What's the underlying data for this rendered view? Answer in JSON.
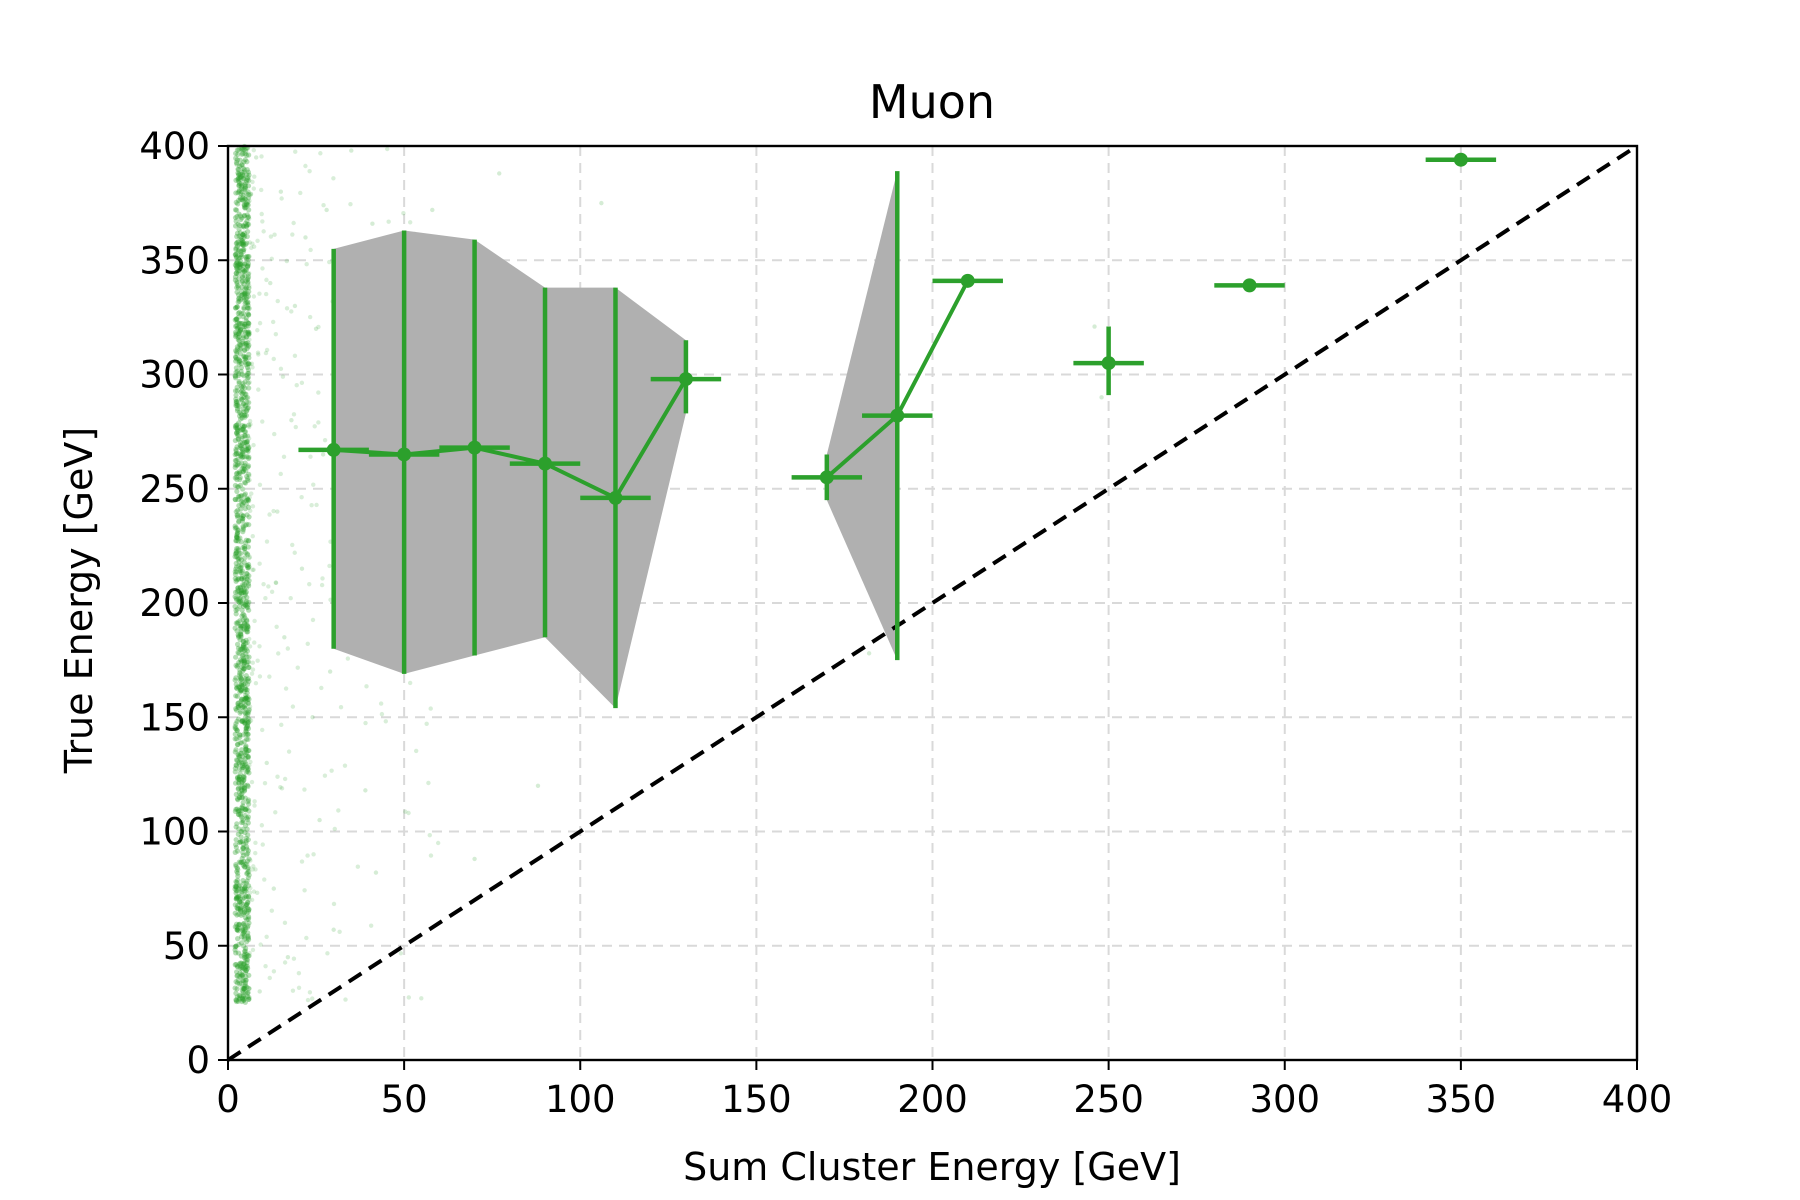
{
  "chart_data": {
    "type": "scatter",
    "title": "Muon",
    "xlabel": "Sum Cluster Energy [GeV]",
    "ylabel": "True Energy [GeV]",
    "xlim": [
      0,
      400
    ],
    "ylim": [
      0,
      400
    ],
    "xticks": [
      "0",
      "50",
      "100",
      "150",
      "200",
      "250",
      "300",
      "350",
      "400"
    ],
    "yticks": [
      "0",
      "50",
      "100",
      "150",
      "200",
      "250",
      "300",
      "350",
      "400"
    ],
    "grid": true,
    "reference_line": {
      "style": "dashed",
      "color": "#000000",
      "from": [
        0,
        0
      ],
      "to": [
        400,
        400
      ]
    },
    "colors": {
      "series": "#2ca02c",
      "band": "#b0b0b0"
    },
    "profile": [
      {
        "x": 30,
        "y": 267,
        "x_err": 10,
        "y_low": 180,
        "y_high": 355
      },
      {
        "x": 50,
        "y": 265,
        "x_err": 10,
        "y_low": 169,
        "y_high": 363
      },
      {
        "x": 70,
        "y": 268,
        "x_err": 10,
        "y_low": 177,
        "y_high": 359
      },
      {
        "x": 90,
        "y": 261,
        "x_err": 10,
        "y_low": 185,
        "y_high": 338
      },
      {
        "x": 110,
        "y": 246,
        "x_err": 10,
        "y_low": 154,
        "y_high": 338
      },
      {
        "x": 130,
        "y": 298,
        "x_err": 10,
        "y_low": 283,
        "y_high": 315
      },
      {
        "x": 170,
        "y": 255,
        "x_err": 10,
        "y_low": 245,
        "y_high": 265
      },
      {
        "x": 190,
        "y": 282,
        "x_err": 10,
        "y_low": 175,
        "y_high": 389
      },
      {
        "x": 210,
        "y": 341,
        "x_err": 10,
        "y_low": 341,
        "y_high": 341
      },
      {
        "x": 250,
        "y": 305,
        "x_err": 10,
        "y_low": 291,
        "y_high": 321
      },
      {
        "x": 290,
        "y": 339,
        "x_err": 10,
        "y_low": 339,
        "y_high": 339
      },
      {
        "x": 350,
        "y": 394,
        "x_err": 10,
        "y_low": 394,
        "y_high": 394
      }
    ],
    "line_segments": [
      [
        0,
        5
      ],
      [
        6,
        8
      ]
    ],
    "bands": [
      [
        0,
        5
      ],
      [
        6,
        7
      ]
    ],
    "scatter_cloud": {
      "description_free": true,
      "dense_x_range": [
        2,
        6
      ],
      "y_range": [
        25,
        400
      ],
      "sparse_x_range": [
        6,
        60
      ],
      "sparse_points": [
        [
          8,
          395
        ],
        [
          15,
          380
        ],
        [
          22,
          360
        ],
        [
          28,
          372
        ],
        [
          35,
          398
        ],
        [
          41,
          366
        ],
        [
          12,
          340
        ],
        [
          19,
          330
        ],
        [
          25,
          320
        ],
        [
          38,
          325
        ],
        [
          44,
          300
        ],
        [
          52,
          310
        ],
        [
          33,
          290
        ],
        [
          18,
          280
        ],
        [
          27,
          265
        ],
        [
          40,
          255
        ],
        [
          14,
          240
        ],
        [
          31,
          226
        ],
        [
          21,
          215
        ],
        [
          36,
          205
        ],
        [
          45,
          195
        ],
        [
          16,
          185
        ],
        [
          29,
          170
        ],
        [
          24,
          150
        ],
        [
          11,
          130
        ],
        [
          39,
          118
        ],
        [
          26,
          105
        ],
        [
          42,
          82
        ],
        [
          13,
          75
        ],
        [
          30,
          57
        ],
        [
          17,
          45
        ],
        [
          9,
          30
        ],
        [
          88,
          120
        ],
        [
          77,
          388
        ],
        [
          106,
          375
        ],
        [
          58,
          372
        ],
        [
          65,
          345
        ],
        [
          73,
          330
        ],
        [
          84,
          315
        ],
        [
          55,
          298
        ],
        [
          68,
          280
        ],
        [
          95,
          270
        ],
        [
          60,
          252
        ],
        [
          80,
          242
        ],
        [
          100,
          228
        ],
        [
          63,
          212
        ],
        [
          92,
          198
        ],
        [
          70,
          88
        ],
        [
          246,
          321
        ],
        [
          248,
          290
        ],
        [
          182,
          178
        ],
        [
          176,
          245
        ]
      ]
    }
  }
}
